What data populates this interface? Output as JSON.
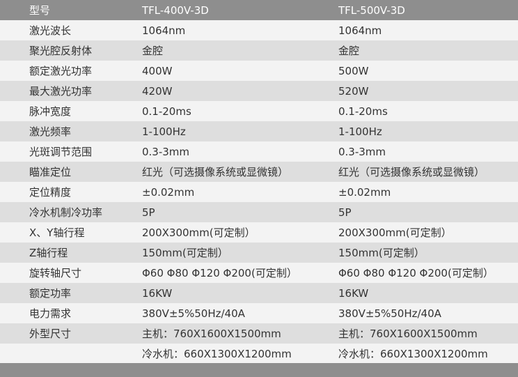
{
  "header": {
    "label": "型号",
    "model_a": "TFL-400V-3D",
    "model_b": "TFL-500V-3D"
  },
  "rows": [
    {
      "label": "激光波长",
      "a": "1064nm",
      "b": "1064nm"
    },
    {
      "label": "聚光腔反射体",
      "a": "金腔",
      "b": "金腔"
    },
    {
      "label": "额定激光功率",
      "a": "400W",
      "b": "500W"
    },
    {
      "label": "最大激光功率",
      "a": "420W",
      "b": "520W"
    },
    {
      "label": "脉冲宽度",
      "a": "0.1-20ms",
      "b": "0.1-20ms"
    },
    {
      "label": "激光频率",
      "a": "1-100Hz",
      "b": "1-100Hz"
    },
    {
      "label": "光斑调节范围",
      "a": "0.3-3mm",
      "b": "0.3-3mm"
    },
    {
      "label": "瞄准定位",
      "a": "红光（可选摄像系统或显微镜）",
      "b": "红光（可选摄像系统或显微镜）"
    },
    {
      "label": "定位精度",
      "a": "±0.02mm",
      "b": "±0.02mm"
    },
    {
      "label": "冷水机制冷功率",
      "a": "5P",
      "b": "5P"
    },
    {
      "label": "X、Y轴行程",
      "a": "200X300mm(可定制）",
      "b": "200X300mm(可定制）"
    },
    {
      "label": "Z轴行程",
      "a": "150mm(可定制）",
      "b": "150mm(可定制）"
    },
    {
      "label": "旋转轴尺寸",
      "a": "Φ60 Φ80 Φ120 Φ200(可定制）",
      "b": "Φ60 Φ80 Φ120 Φ200(可定制）"
    },
    {
      "label": "额定功率",
      "a": "16KW",
      "b": "16KW"
    },
    {
      "label": "电力需求",
      "a": "380V±5%50Hz/40A",
      "b": "380V±5%50Hz/40A"
    },
    {
      "label": "外型尺寸",
      "a": "主机：760X1600X1500mm",
      "b": "主机：760X1600X1500mm"
    },
    {
      "label": "",
      "a": "冷水机：660X1300X1200mm",
      "b": "冷水机：660X1300X1200mm"
    }
  ]
}
